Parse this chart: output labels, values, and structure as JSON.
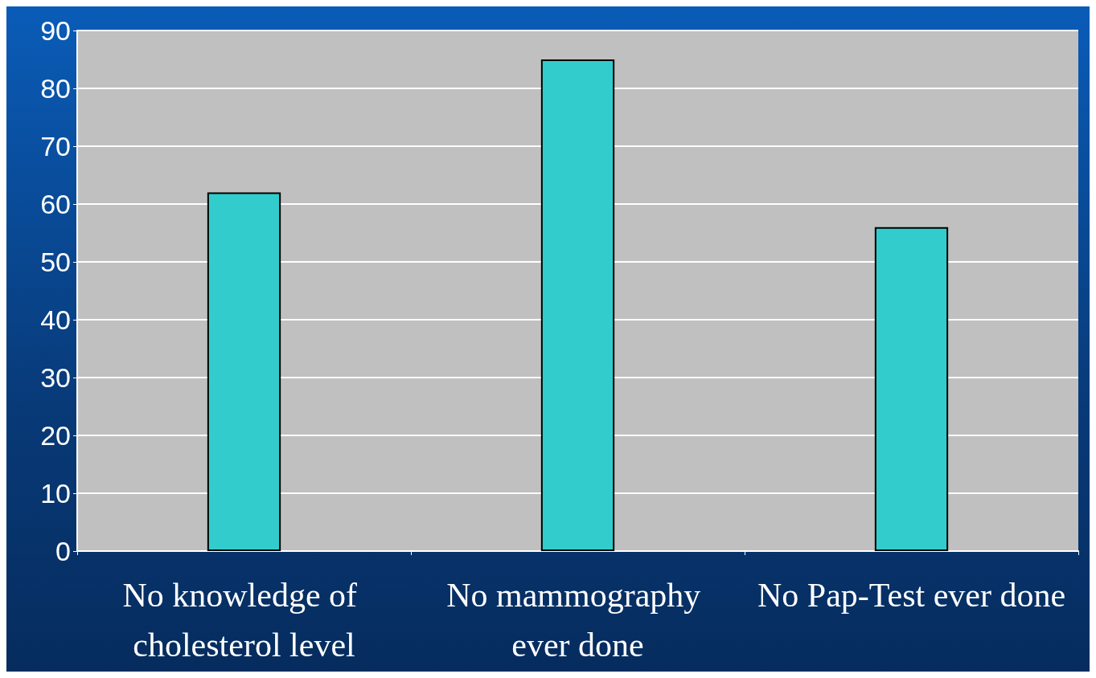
{
  "chart_data": {
    "type": "bar",
    "categories": [
      "No knowledge of cholesterol level",
      "No mammography ever done",
      "No Pap-Test ever done"
    ],
    "values": [
      62,
      85,
      56
    ],
    "color": "#33cccc",
    "ylim": [
      0,
      90
    ],
    "yticks": [
      0,
      10,
      20,
      30,
      40,
      50,
      60,
      70,
      80,
      90
    ],
    "grid": "y"
  }
}
